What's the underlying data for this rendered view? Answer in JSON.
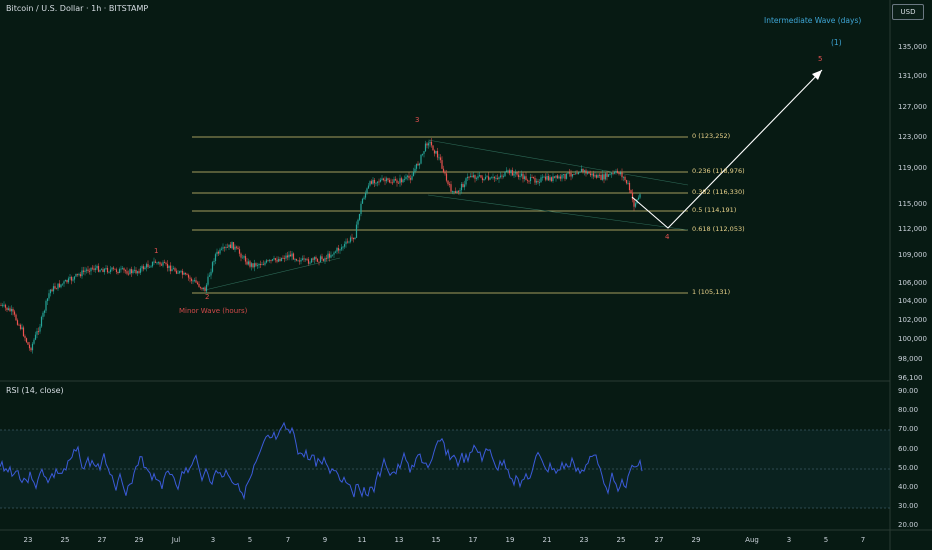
{
  "header": {
    "symbol_title": "Bitcoin / U.S. Dollar · 1h · BITSTAMP",
    "currency_button": "USD"
  },
  "annotations": {
    "intermediate_wave": "Intermediate Wave (days)",
    "wave_1_label": "(1)",
    "minor_wave": "Minor Wave (hours)",
    "wave_numbers": [
      "1",
      "2",
      "3",
      "4",
      "5"
    ]
  },
  "fib_levels": [
    {
      "label": "0 (123,252)",
      "price": 123252
    },
    {
      "label": "0.236 (118,976)",
      "price": 118976
    },
    {
      "label": "0.382 (116,330)",
      "price": 116330
    },
    {
      "label": "0.5 (114,191)",
      "price": 114191
    },
    {
      "label": "0.618 (112,053)",
      "price": 112053
    },
    {
      "label": "1 (105,131)",
      "price": 105131
    }
  ],
  "price_axis": [
    "135,000",
    "131,000",
    "127,000",
    "123,000",
    "119,000",
    "115,000",
    "112,000",
    "109,000",
    "106,000",
    "104,000",
    "102,000",
    "100,000",
    "98,000",
    "96,100"
  ],
  "rsi": {
    "label": "RSI (14, close)",
    "axis": [
      "90.00",
      "80.00",
      "70.00",
      "60.00",
      "50.00",
      "40.00",
      "30.00",
      "20.00"
    ]
  },
  "date_axis": [
    "23",
    "25",
    "27",
    "29",
    "Jul",
    "3",
    "5",
    "7",
    "9",
    "11",
    "13",
    "15",
    "17",
    "19",
    "21",
    "23",
    "25",
    "27",
    "29",
    "Aug",
    "3",
    "5",
    "7"
  ],
  "colors": {
    "background": "#071a13",
    "fib_line": "#e8d28a",
    "rsi_line": "#3b5bd9",
    "wave_red": "#e05050",
    "wave_blue": "#3ea6d6",
    "projection": "#ffffff"
  }
}
